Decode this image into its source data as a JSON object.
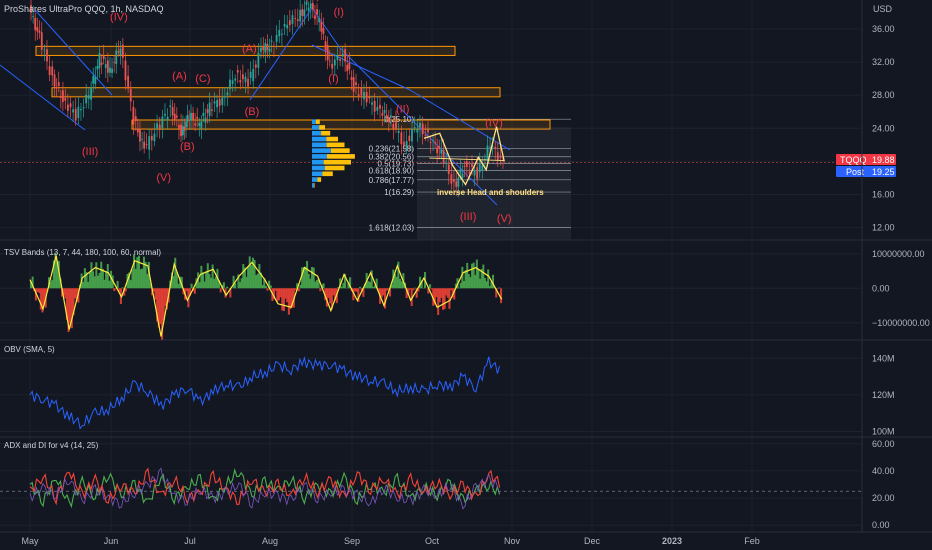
{
  "colors": {
    "background": "#131722",
    "grid": "#1e222d",
    "separator": "#2a2e39",
    "text": "#d1d4dc",
    "axis_text": "#b2b5be",
    "wave": "#f23645",
    "zone": "#ff9800",
    "trendline": "#2962ff",
    "bull": "#26a69a",
    "bear": "#ef5350",
    "vp_blue": "#2196f3",
    "vp_yellow": "#ffc107",
    "tsv_pos": "#4caf50",
    "tsv_neg": "#f44336",
    "tsv_line": "#ffeb3b",
    "obv": "#2962ff",
    "adx_plus": "#4caf50",
    "adx_minus": "#f44336",
    "adx_line": "#7e57c2",
    "pattern": "#ffe082"
  },
  "header": {
    "symbol_title": "ProShares UltraPro QQQ, 1h, NASDAQ",
    "currency": "USD"
  },
  "price_badges": {
    "last": {
      "label": "TQQQ",
      "value": "19.88"
    },
    "post": {
      "label": "Post",
      "value": "19.25"
    }
  },
  "annotations": {
    "pattern": "inverse Head and shoulders"
  },
  "chart_data": [
    {
      "type": "line",
      "pane": "price",
      "y_axis_ticks": [
        12.0,
        16.0,
        20.0,
        24.0,
        28.0,
        32.0,
        36.0
      ],
      "ylim": [
        10.5,
        39.5
      ],
      "x_axis_labels": [
        "May",
        "Jun",
        "Jul",
        "Aug",
        "Sep",
        "Oct",
        "Nov",
        "Dec",
        "2023",
        "Feb"
      ],
      "close_series": {
        "x": [
          "2022-05-01",
          "2022-05-05",
          "2022-05-10",
          "2022-05-14",
          "2022-05-19",
          "2022-05-24",
          "2022-05-28",
          "2022-06-01",
          "2022-06-05",
          "2022-06-10",
          "2022-06-14",
          "2022-06-19",
          "2022-06-24",
          "2022-06-28",
          "2022-07-01",
          "2022-07-05",
          "2022-07-09",
          "2022-07-14",
          "2022-07-19",
          "2022-07-24",
          "2022-07-29",
          "2022-08-02",
          "2022-08-07",
          "2022-08-12",
          "2022-08-16",
          "2022-08-20",
          "2022-08-24",
          "2022-08-29",
          "2022-09-02",
          "2022-09-07",
          "2022-09-12",
          "2022-09-16",
          "2022-09-21",
          "2022-09-26",
          "2022-10-01",
          "2022-10-05",
          "2022-10-10",
          "2022-10-14",
          "2022-10-19",
          "2022-10-24",
          "2022-10-29"
        ],
        "y": [
          38.5,
          35.0,
          30.0,
          27.5,
          25.5,
          28.0,
          32.5,
          31.0,
          34.0,
          25.0,
          21.5,
          24.0,
          26.5,
          23.5,
          25.5,
          24.5,
          26.5,
          27.5,
          30.5,
          29.5,
          33.5,
          34.0,
          36.5,
          37.5,
          39.0,
          37.0,
          31.5,
          33.0,
          29.0,
          27.5,
          26.0,
          25.0,
          22.0,
          24.5,
          22.5,
          21.0,
          17.0,
          19.5,
          18.5,
          22.0,
          19.9
        ]
      },
      "horizontal_zones": [
        [
          32.8,
          33.9
        ],
        [
          27.8,
          28.9
        ],
        [
          23.9,
          25.0
        ]
      ],
      "waves": [
        {
          "label": "(IV)",
          "x": "2022-06-04",
          "y": 37.0
        },
        {
          "label": "(III)",
          "x": "2022-05-24",
          "y": 20.8
        },
        {
          "label": "(V)",
          "x": "2022-06-21",
          "y": 17.6
        },
        {
          "label": "(A)",
          "x": "2022-06-27",
          "y": 29.9
        },
        {
          "label": "(B)",
          "x": "2022-06-30",
          "y": 21.4
        },
        {
          "label": "(C)",
          "x": "2022-07-06",
          "y": 29.6
        },
        {
          "label": "(A)",
          "x": "2022-07-24",
          "y": 33.2
        },
        {
          "label": "(B)",
          "x": "2022-07-25",
          "y": 25.6
        },
        {
          "label": "(C)",
          "x": "2022-08-17",
          "y": 39.6
        },
        {
          "label": "(I)",
          "x": "2022-08-27",
          "y": 37.6
        },
        {
          "label": "(I)",
          "x": "2022-08-25",
          "y": 29.6
        },
        {
          "label": "(II)",
          "x": "2022-09-20",
          "y": 25.9
        },
        {
          "label": "(IV)",
          "x": "2022-10-25",
          "y": 24.2
        },
        {
          "label": "(III)",
          "x": "2022-10-15",
          "y": 12.9
        },
        {
          "label": "(V)",
          "x": "2022-10-29",
          "y": 12.7
        }
      ],
      "fibonacci": {
        "levels": [
          "0(25.10)",
          "0.236(21.58)",
          "0.382(20.56)",
          "0.5(19.73)",
          "0.618(18.90)",
          "0.786(17.77)",
          "1(16.29)",
          "1.618(12.03)"
        ],
        "prices": [
          25.1,
          21.58,
          20.56,
          19.73,
          18.9,
          17.77,
          16.29,
          12.03
        ]
      },
      "volume_profile": {
        "price_bins": [
          24.8,
          24.1,
          23.4,
          22.7,
          22.0,
          21.3,
          20.6,
          19.9,
          19.2,
          18.5,
          17.8,
          17.1
        ],
        "total": [
          6,
          10,
          14,
          20,
          25,
          29,
          33,
          30,
          25,
          16,
          7,
          2
        ],
        "up_share": [
          0.5,
          0.55,
          0.5,
          0.55,
          0.45,
          0.5,
          0.35,
          0.3,
          0.4,
          0.5,
          0.6,
          0.7
        ]
      }
    },
    {
      "type": "area",
      "pane": "TSV Bands",
      "title": "TSV Bands (13, 7, 44, 180, 100, 60, normal)",
      "y_axis_ticks": [
        "10000000.00",
        "0.00",
        "−10000000.00"
      ],
      "ylim": [
        -15000000,
        14000000
      ],
      "x": [
        "2022-05-01",
        "2022-05-06",
        "2022-05-11",
        "2022-05-16",
        "2022-05-21",
        "2022-05-26",
        "2022-05-31",
        "2022-06-05",
        "2022-06-10",
        "2022-06-15",
        "2022-06-20",
        "2022-06-25",
        "2022-06-30",
        "2022-07-05",
        "2022-07-10",
        "2022-07-15",
        "2022-07-20",
        "2022-07-25",
        "2022-07-30",
        "2022-08-04",
        "2022-08-09",
        "2022-08-14",
        "2022-08-19",
        "2022-08-24",
        "2022-08-29",
        "2022-09-03",
        "2022-09-08",
        "2022-09-13",
        "2022-09-18",
        "2022-09-23",
        "2022-09-28",
        "2022-10-03",
        "2022-10-08",
        "2022-10-13",
        "2022-10-18",
        "2022-10-23",
        "2022-10-28"
      ],
      "values": [
        2500000,
        -6000000,
        9500000,
        -12000000,
        3000000,
        6000000,
        4500000,
        -2500000,
        8000000,
        6500000,
        -14000000,
        7000000,
        -3500000,
        4000000,
        5500000,
        -2000000,
        3500000,
        7500000,
        2500000,
        -4500000,
        -5500000,
        6000000,
        3500000,
        -6500000,
        4000000,
        -3500000,
        4500000,
        -5000000,
        6500000,
        -3500000,
        3000000,
        -5500000,
        -3500000,
        4500000,
        6000000,
        3500000,
        -3200000
      ]
    },
    {
      "type": "line",
      "pane": "OBV",
      "title": "OBV (SMA, 5)",
      "y_axis_ticks": [
        "140M",
        "120M",
        "100M"
      ],
      "ylim": [
        97000000,
        150000000
      ],
      "x": [
        "2022-05-01",
        "2022-05-06",
        "2022-05-11",
        "2022-05-16",
        "2022-05-21",
        "2022-05-26",
        "2022-05-31",
        "2022-06-05",
        "2022-06-10",
        "2022-06-15",
        "2022-06-20",
        "2022-06-25",
        "2022-06-30",
        "2022-07-05",
        "2022-07-10",
        "2022-07-15",
        "2022-07-20",
        "2022-07-25",
        "2022-07-30",
        "2022-08-04",
        "2022-08-09",
        "2022-08-14",
        "2022-08-19",
        "2022-08-24",
        "2022-08-29",
        "2022-09-03",
        "2022-09-08",
        "2022-09-13",
        "2022-09-18",
        "2022-09-23",
        "2022-09-28",
        "2022-10-03",
        "2022-10-08",
        "2022-10-13",
        "2022-10-18",
        "2022-10-23",
        "2022-10-28"
      ],
      "values": [
        120000000,
        118000000,
        114000000,
        108000000,
        104000000,
        110000000,
        112000000,
        118000000,
        126000000,
        122000000,
        114000000,
        120000000,
        124000000,
        116000000,
        122000000,
        126000000,
        124000000,
        130000000,
        132000000,
        136000000,
        134000000,
        138000000,
        136000000,
        137000000,
        133000000,
        130000000,
        128000000,
        126000000,
        122000000,
        124000000,
        122000000,
        126000000,
        124000000,
        130000000,
        124000000,
        138000000,
        133000000
      ]
    },
    {
      "type": "line",
      "pane": "ADX",
      "title": "ADX and DI for v4 (14, 25)",
      "y_axis_ticks": [
        "60.00",
        "40.00",
        "20.00",
        "0.00"
      ],
      "ylim": [
        -5,
        65
      ],
      "reference_line": 25,
      "x": [
        "2022-05-01",
        "2022-05-06",
        "2022-05-11",
        "2022-05-16",
        "2022-05-21",
        "2022-05-26",
        "2022-05-31",
        "2022-06-05",
        "2022-06-10",
        "2022-06-15",
        "2022-06-20",
        "2022-06-25",
        "2022-06-30",
        "2022-07-05",
        "2022-07-10",
        "2022-07-15",
        "2022-07-20",
        "2022-07-25",
        "2022-07-30",
        "2022-08-04",
        "2022-08-09",
        "2022-08-14",
        "2022-08-19",
        "2022-08-24",
        "2022-08-29",
        "2022-09-03",
        "2022-09-08",
        "2022-09-13",
        "2022-09-18",
        "2022-09-23",
        "2022-09-28",
        "2022-10-03",
        "2022-10-08",
        "2022-10-13",
        "2022-10-18",
        "2022-10-23",
        "2022-10-28"
      ],
      "series": [
        {
          "values": [
            30,
            18,
            35,
            15,
            32,
            20,
            38,
            22,
            30,
            16,
            36,
            20,
            28,
            34,
            18,
            30,
            40,
            22,
            32,
            26,
            34,
            20,
            30,
            22,
            36,
            18,
            30,
            24,
            34,
            20,
            28,
            22,
            32,
            18,
            26,
            30,
            22
          ]
        },
        {
          "values": [
            25,
            36,
            20,
            40,
            22,
            34,
            18,
            30,
            24,
            38,
            22,
            34,
            20,
            24,
            36,
            26,
            18,
            34,
            24,
            30,
            22,
            36,
            24,
            34,
            20,
            38,
            26,
            34,
            22,
            34,
            24,
            32,
            22,
            30,
            20,
            38,
            30
          ]
        },
        {
          "values": [
            20,
            28,
            22,
            34,
            18,
            26,
            20,
            16,
            24,
            30,
            38,
            22,
            18,
            26,
            20,
            24,
            30,
            16,
            24,
            22,
            18,
            30,
            20,
            24,
            26,
            22,
            16,
            28,
            20,
            18,
            26,
            22,
            30,
            14,
            28,
            34,
            26
          ]
        }
      ]
    }
  ]
}
